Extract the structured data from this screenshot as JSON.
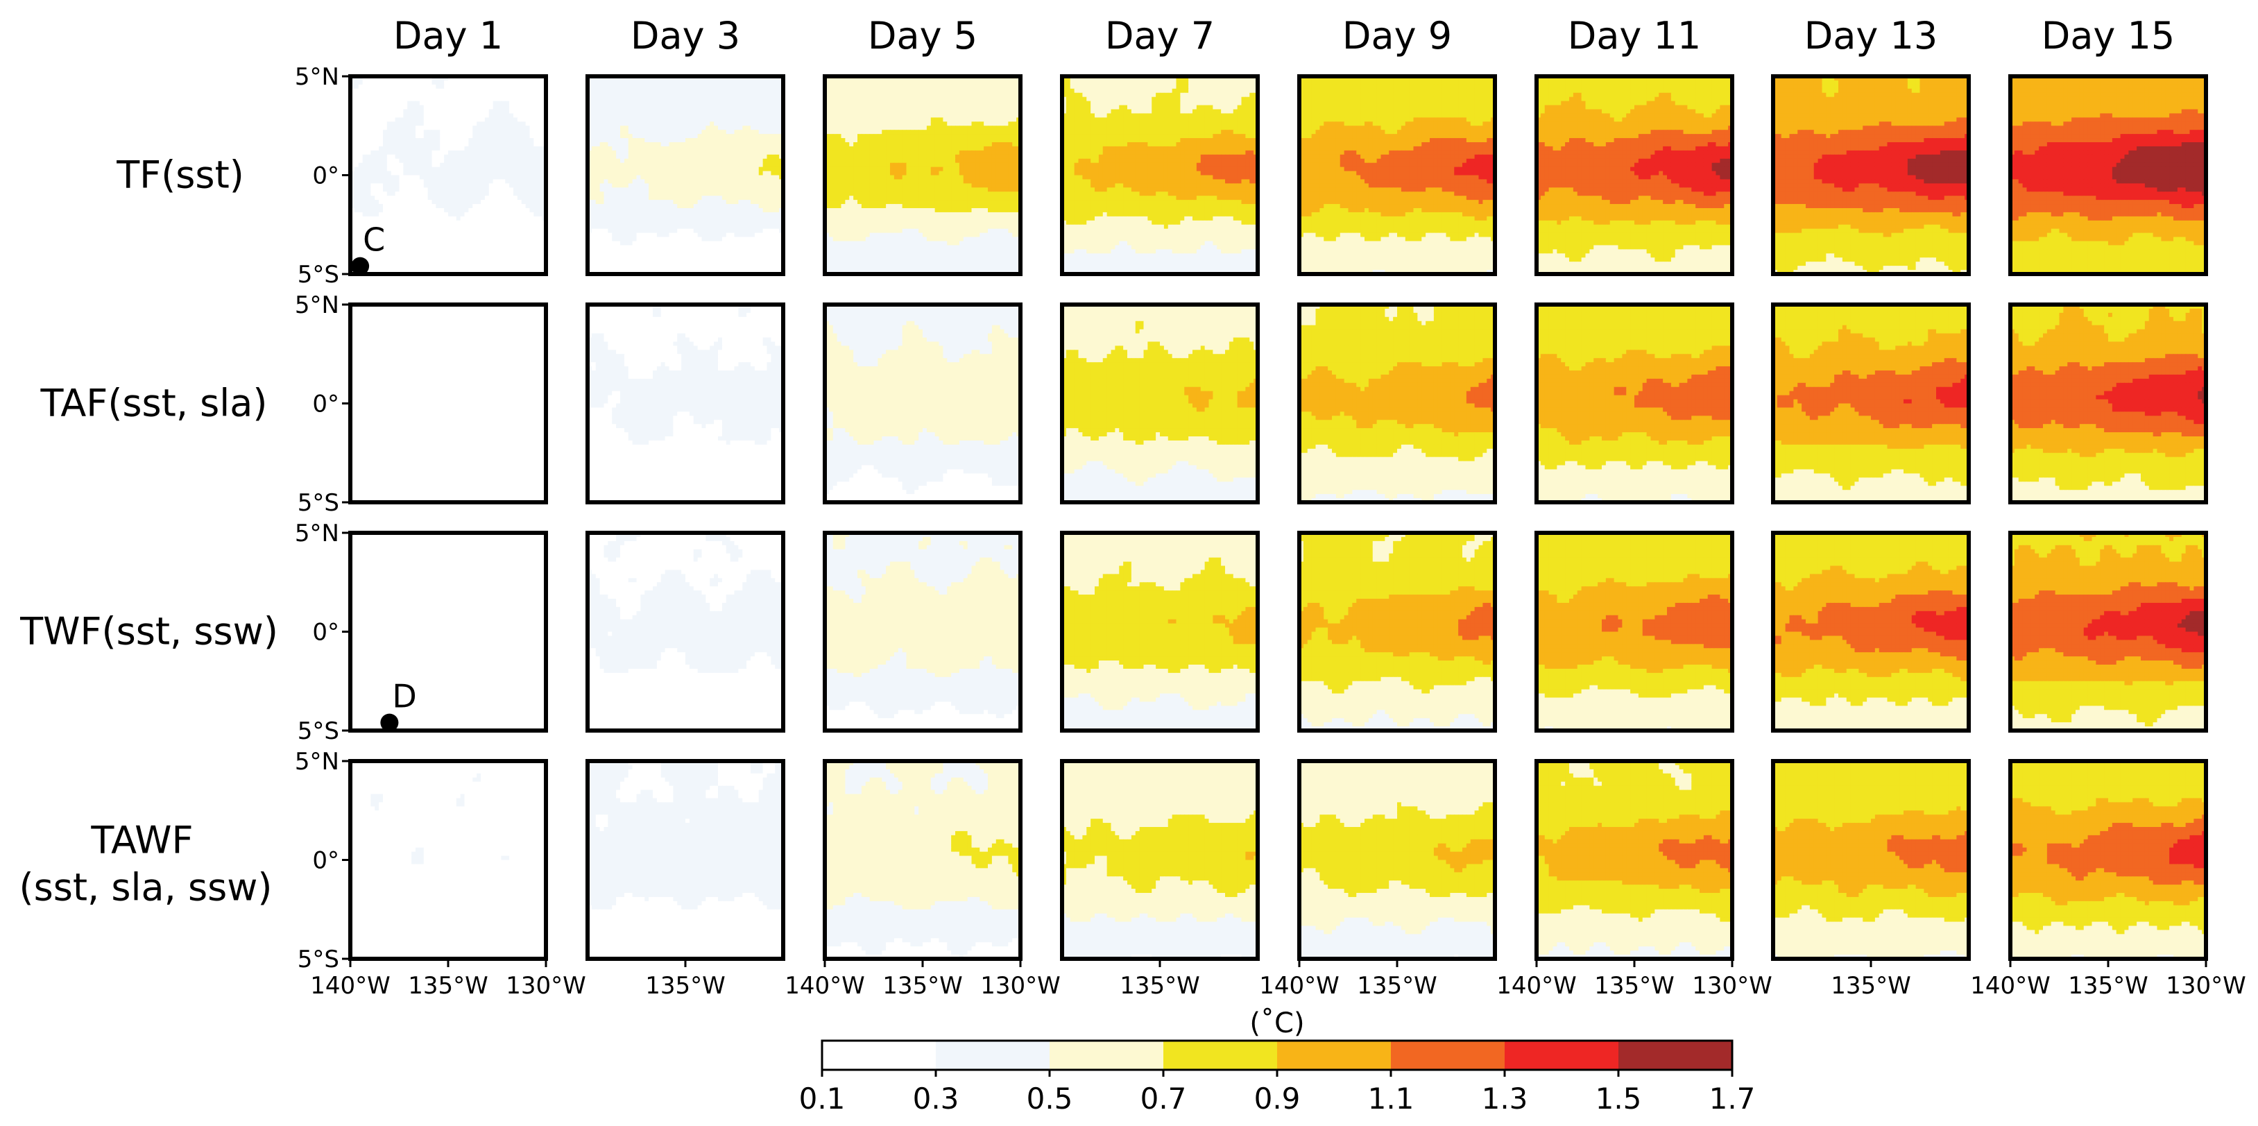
{
  "chart_data": {
    "type": "heatmap",
    "title": "",
    "column_titles": [
      "Day 1",
      "Day 3",
      "Day 5",
      "Day 7",
      "Day 9",
      "Day 11",
      "Day 13",
      "Day 15"
    ],
    "row_labels": [
      {
        "line1": "TF(sst)",
        "line2": ""
      },
      {
        "line1": "TAF(sst, sla)",
        "line2": ""
      },
      {
        "line1": "TWF(sst, ssw)",
        "line2": ""
      },
      {
        "line1": "TAWF",
        "line2": "(sst, sla, ssw)"
      }
    ],
    "lat_ticks": [
      "5°N",
      "0°",
      "5°S"
    ],
    "lat_range": [
      -5,
      5
    ],
    "lon_range": [
      -140,
      -130
    ],
    "lon_tick_labels": {
      "0": [
        "140°W",
        "135°W",
        "130°W"
      ],
      "1": [
        "135°W"
      ],
      "2": [
        "140°W",
        "135°W",
        "130°W"
      ],
      "3": [
        "135°W"
      ],
      "4": [
        "140°W",
        "135°W"
      ],
      "5": [
        "140°W",
        "135°W",
        "130°W"
      ],
      "6": [
        "135°W"
      ],
      "7": [
        "140°W",
        "135°W",
        "130°W"
      ]
    },
    "lon_tick_values": {
      "0": [
        -140,
        -135,
        -130
      ],
      "1": [
        -135
      ],
      "2": [
        -140,
        -135,
        -130
      ],
      "3": [
        -135
      ],
      "4": [
        -140,
        -135
      ],
      "5": [
        -140,
        -135,
        -130
      ],
      "6": [
        -135
      ],
      "7": [
        -140,
        -135,
        -130
      ]
    },
    "colorbar": {
      "label": "(˚C)",
      "levels": [
        0.1,
        0.3,
        0.5,
        0.7,
        0.9,
        1.1,
        1.3,
        1.5,
        1.7
      ],
      "tick_labels": [
        "0.1",
        "0.3",
        "0.5",
        "0.7",
        "0.9",
        "1.1",
        "1.3",
        "1.5",
        "1.7"
      ],
      "colors": [
        "#ffffff",
        "#f1f6fb",
        "#fdf9d2",
        "#f1e520",
        "#f8b417",
        "#f26722",
        "#ee2624",
        "#a32a2a"
      ]
    },
    "markers": [
      {
        "label": "C",
        "row": 0,
        "col": 0,
        "lon": -139.5,
        "lat": -4.6
      },
      {
        "label": "D",
        "row": 2,
        "col": 0,
        "lon": -138.0,
        "lat": -4.6
      }
    ],
    "panel_pattern_params": [
      [
        [
          0.27,
          0.04
        ],
        [
          0.38,
          0.15
        ],
        [
          0.58,
          0.22
        ],
        [
          0.66,
          0.25
        ],
        [
          0.78,
          0.28
        ],
        [
          0.85,
          0.32
        ],
        [
          0.92,
          0.34
        ],
        [
          0.98,
          0.38
        ]
      ],
      [
        [
          0.15,
          0.0
        ],
        [
          0.26,
          0.06
        ],
        [
          0.46,
          0.1
        ],
        [
          0.63,
          0.15
        ],
        [
          0.72,
          0.2
        ],
        [
          0.78,
          0.23
        ],
        [
          0.84,
          0.25
        ],
        [
          0.88,
          0.3
        ]
      ],
      [
        [
          0.18,
          0.0
        ],
        [
          0.27,
          0.06
        ],
        [
          0.47,
          0.1
        ],
        [
          0.63,
          0.15
        ],
        [
          0.72,
          0.2
        ],
        [
          0.78,
          0.23
        ],
        [
          0.82,
          0.27
        ],
        [
          0.88,
          0.31
        ]
      ],
      [
        [
          0.25,
          0.0
        ],
        [
          0.3,
          0.06
        ],
        [
          0.5,
          0.11
        ],
        [
          0.58,
          0.14
        ],
        [
          0.6,
          0.16
        ],
        [
          0.72,
          0.22
        ],
        [
          0.75,
          0.22
        ],
        [
          0.8,
          0.28
        ]
      ]
    ]
  }
}
